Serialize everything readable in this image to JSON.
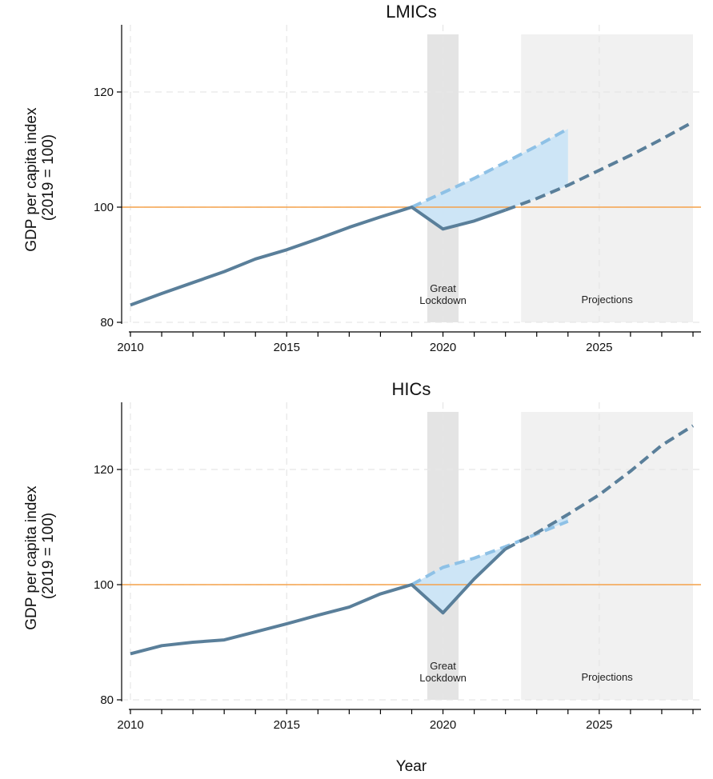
{
  "chart_data": [
    {
      "type": "line",
      "title": "LMICs",
      "xlabel": "Year",
      "ylabel": "GDP per capita index\n(2019 = 100)",
      "xlim": [
        2010,
        2028
      ],
      "ylim": [
        80,
        130
      ],
      "xticks": [
        2010,
        2015,
        2020,
        2025
      ],
      "yticks": [
        80,
        100,
        120
      ],
      "grid": true,
      "reference_line": 100,
      "shaded_regions": [
        {
          "label": "Great\nLockdown",
          "from": 2019.5,
          "to": 2020.5
        },
        {
          "label": "Projections",
          "from": 2022.5,
          "to": 2028
        }
      ],
      "series": [
        {
          "role": "actual",
          "x": [
            2010,
            2011,
            2012,
            2013,
            2014,
            2015,
            2016,
            2017,
            2018,
            2019,
            2020,
            2021,
            2022
          ],
          "y": [
            83.0,
            85.0,
            86.9,
            88.8,
            91.0,
            92.6,
            94.5,
            96.5,
            98.3,
            100.0,
            96.2,
            97.6,
            99.5
          ]
        },
        {
          "role": "projection",
          "x": [
            2022,
            2023,
            2024,
            2025,
            2026,
            2027,
            2028
          ],
          "y": [
            99.5,
            101.5,
            103.8,
            106.4,
            109.0,
            111.8,
            114.8
          ]
        },
        {
          "role": "pre-crisis forecast",
          "x": [
            2019,
            2020,
            2021,
            2022,
            2023,
            2024
          ],
          "y": [
            100.0,
            102.5,
            105.0,
            107.8,
            110.6,
            113.6
          ]
        }
      ]
    },
    {
      "type": "line",
      "title": "HICs",
      "xlabel": "Year",
      "ylabel": "GDP per capita index\n(2019 = 100)",
      "xlim": [
        2010,
        2028
      ],
      "ylim": [
        80,
        130
      ],
      "xticks": [
        2010,
        2015,
        2020,
        2025
      ],
      "yticks": [
        80,
        100,
        120
      ],
      "grid": true,
      "reference_line": 100,
      "shaded_regions": [
        {
          "label": "Great\nLockdown",
          "from": 2019.5,
          "to": 2020.5
        },
        {
          "label": "Projections",
          "from": 2022.5,
          "to": 2028
        }
      ],
      "series": [
        {
          "role": "actual",
          "x": [
            2010,
            2011,
            2012,
            2013,
            2014,
            2015,
            2016,
            2017,
            2018,
            2019,
            2020,
            2021,
            2022
          ],
          "y": [
            88.0,
            89.4,
            90.0,
            90.4,
            91.8,
            93.2,
            94.7,
            96.1,
            98.4,
            100.0,
            95.1,
            101.0,
            106.2
          ]
        },
        {
          "role": "projection",
          "x": [
            2022,
            2023,
            2024,
            2025,
            2026,
            2027,
            2028
          ],
          "y": [
            106.2,
            109.0,
            112.2,
            115.6,
            119.7,
            124.2,
            127.6
          ]
        },
        {
          "role": "pre-crisis forecast",
          "x": [
            2019,
            2020,
            2021,
            2022,
            2023,
            2024
          ],
          "y": [
            100.0,
            103.0,
            104.6,
            106.6,
            108.8,
            111.0
          ]
        }
      ]
    }
  ],
  "colors": {
    "actual": "#5a7f9a",
    "forecast": "#8ec1e6",
    "gap_fill": "#cde5f6",
    "reference": "#f5a24b",
    "lockdown_shade": "#e4e4e4",
    "projection_shade": "#f1f1f1",
    "grid": "#e6e6e6"
  }
}
